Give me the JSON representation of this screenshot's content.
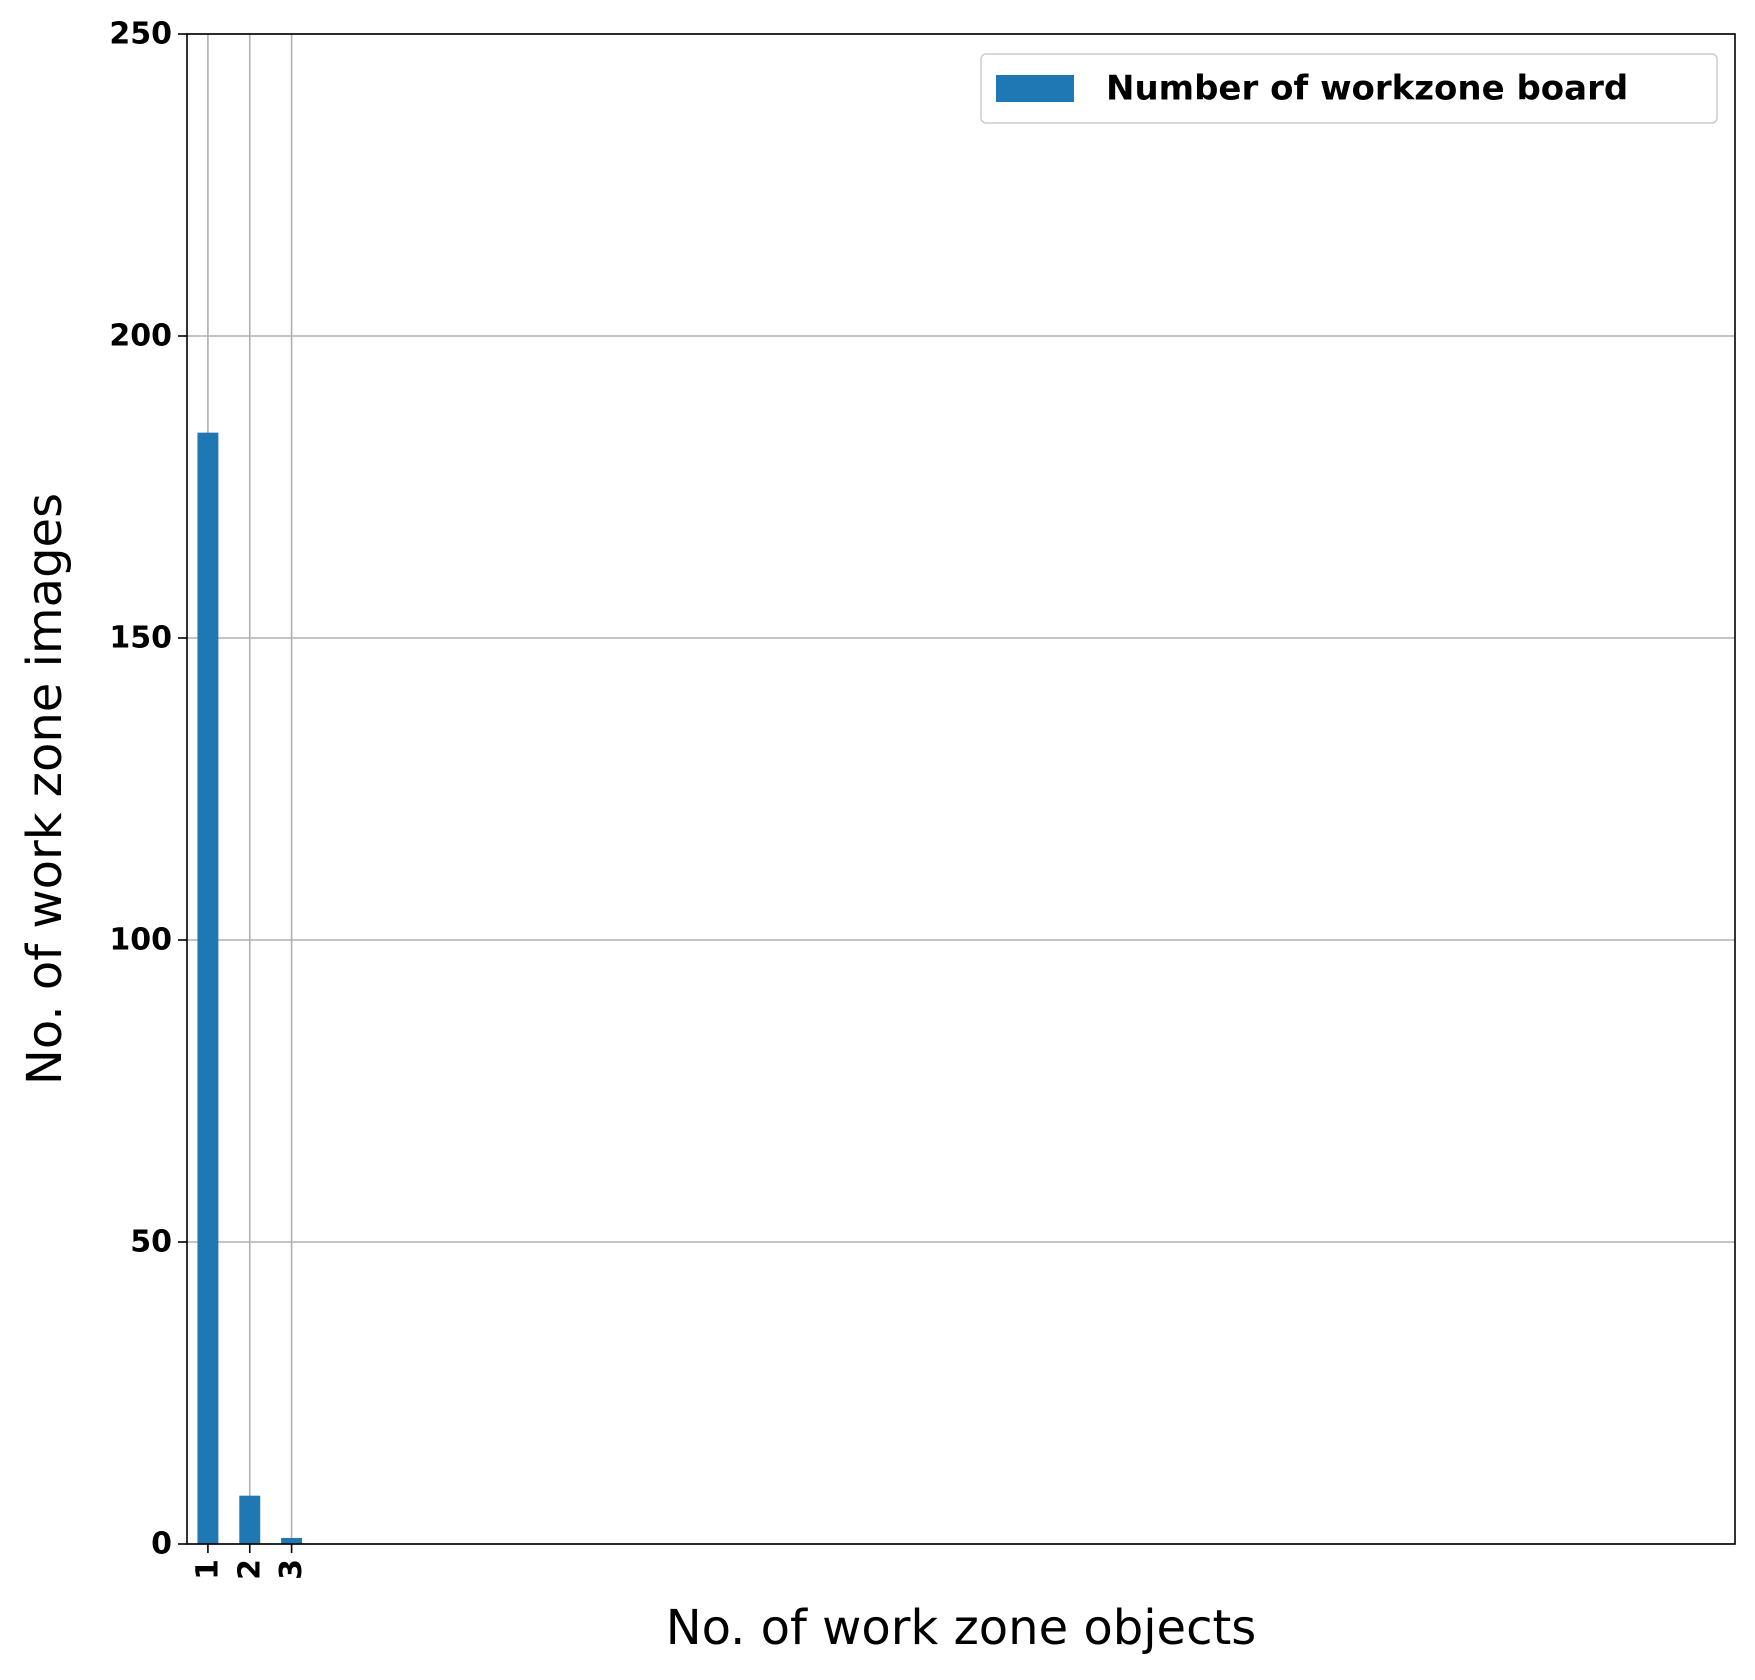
{
  "chart_data": {
    "type": "bar",
    "categories": [
      "1",
      "2",
      "3"
    ],
    "x": [
      1,
      2,
      3
    ],
    "series": [
      {
        "name": "Number of workzone board",
        "values": [
          184,
          8,
          1
        ],
        "color": "#1f77b4"
      }
    ],
    "title": "",
    "xlabel": "No. of work zone objects",
    "ylabel": "No. of work zone images",
    "ylim": [
      0,
      250
    ],
    "yticks": [
      0,
      50,
      100,
      150,
      200,
      250
    ],
    "yticks_labels": [
      "0",
      "50",
      "100",
      "150",
      "200",
      "250"
    ],
    "xlim": [
      0.5,
      37.5
    ],
    "grid": true,
    "grid_color": "#b0b0b0",
    "legend_position": "top-right",
    "xtick_rotation": "vertical"
  }
}
